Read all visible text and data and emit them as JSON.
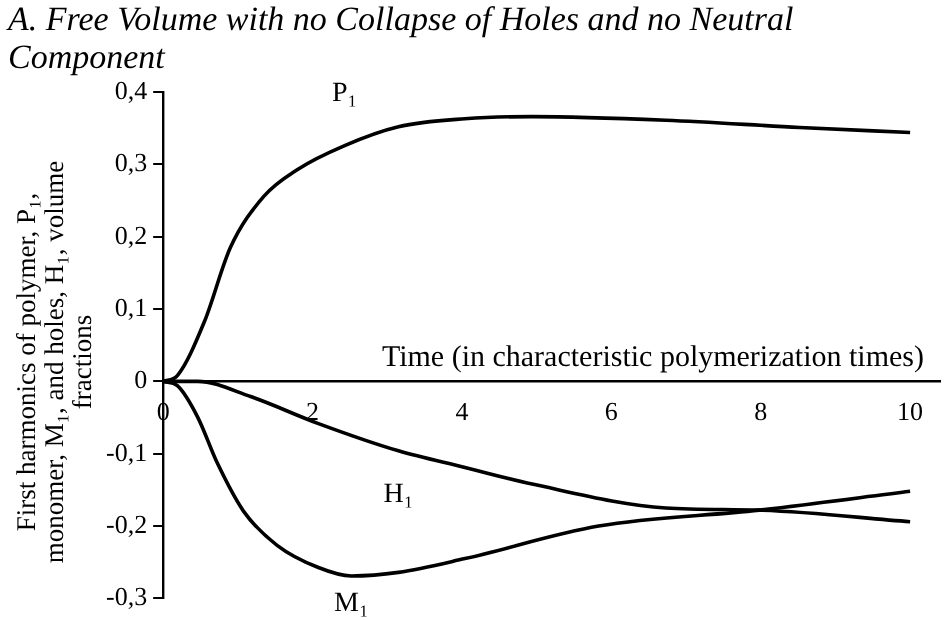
{
  "chart_data": {
    "type": "line",
    "title": "A.  Free Volume with no Collapse of Holes and no Neutral Component",
    "xlabel": "Time (in characteristic polymerization times)",
    "ylabel": "First harmonics of polymer, P₁, monomer, M₁, and holes, H₁, volume fractions",
    "xlim": [
      0,
      10.4
    ],
    "xticks": [
      0,
      2,
      4,
      6,
      8,
      10
    ],
    "ylim": [
      -0.3,
      0.4
    ],
    "yticks": [
      {
        "value": -0.3,
        "label": "-0,3"
      },
      {
        "value": -0.2,
        "label": "-0,2"
      },
      {
        "value": -0.1,
        "label": "-0,1"
      },
      {
        "value": 0,
        "label": "0"
      },
      {
        "value": 0.1,
        "label": "0,1"
      },
      {
        "value": 0.2,
        "label": "0,2"
      },
      {
        "value": 0.3,
        "label": "0,3"
      },
      {
        "value": 0.4,
        "label": "0,4"
      }
    ],
    "grid": false,
    "legend": false,
    "marker": "none",
    "line_style": "solid",
    "series": [
      {
        "name": "P₁",
        "color": "#000000",
        "x": [
          0,
          0.19,
          0.55,
          0.9,
          1.35,
          1.8,
          2.43,
          3.15,
          4.04,
          4.94,
          6.73,
          8.52,
          10
        ],
        "values": [
          0,
          0.008,
          0.082,
          0.185,
          0.256,
          0.293,
          0.326,
          0.352,
          0.363,
          0.366,
          0.361,
          0.351,
          0.344
        ]
      },
      {
        "name": "M₁",
        "color": "#000000",
        "x": [
          0,
          0.19,
          0.46,
          0.73,
          1.08,
          1.53,
          2.07,
          2.52,
          3.15,
          4.04,
          5.83,
          7.98,
          10
        ],
        "values": [
          0,
          -0.006,
          -0.049,
          -0.114,
          -0.18,
          -0.227,
          -0.257,
          -0.269,
          -0.264,
          -0.245,
          -0.2,
          -0.178,
          -0.152
        ]
      },
      {
        "name": "H₁",
        "color": "#000000",
        "x": [
          0,
          0.46,
          1.17,
          2.07,
          3.15,
          4.04,
          4.94,
          6.73,
          7.98,
          10
        ],
        "values": [
          0,
          0,
          -0.021,
          -0.058,
          -0.096,
          -0.119,
          -0.142,
          -0.175,
          -0.178,
          -0.194
        ]
      }
    ]
  }
}
